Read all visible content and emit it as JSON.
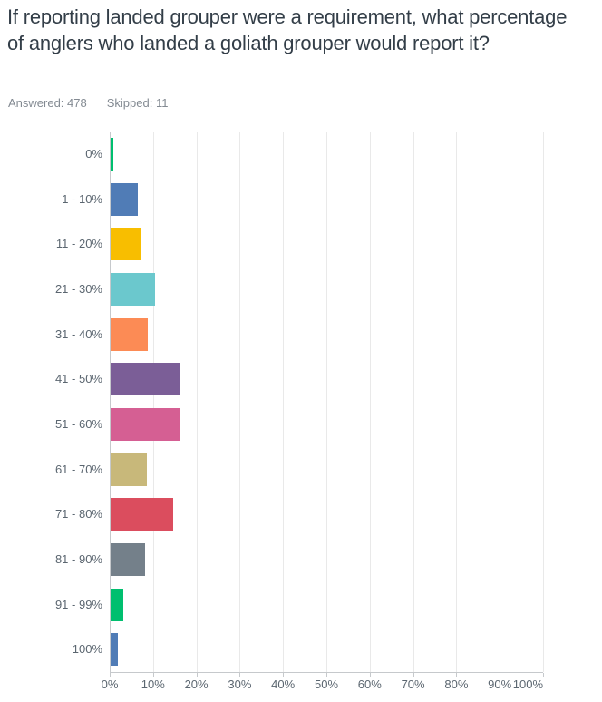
{
  "header": {
    "title": "If reporting landed grouper were a requirement, what percentage of anglers who landed a goliath grouper would report it?",
    "answered_label": "Answered:",
    "answered_value": "478",
    "skipped_label": "Skipped:",
    "skipped_value": "11"
  },
  "chart_data": {
    "type": "bar",
    "orientation": "horizontal",
    "title": "If reporting landed grouper were a requirement, what percentage of anglers who landed a goliath grouper would report it?",
    "categories": [
      "0%",
      "1 - 10%",
      "11 - 20%",
      "21 - 30%",
      "31 - 40%",
      "41 - 50%",
      "51 - 60%",
      "61 - 70%",
      "71 - 80%",
      "81 - 90%",
      "91 - 99%",
      "100%"
    ],
    "values": [
      0.63,
      6.28,
      6.9,
      10.25,
      8.58,
      16.11,
      15.9,
      8.37,
      14.44,
      7.95,
      2.93,
      1.67
    ],
    "unit": "%",
    "xlim": [
      0,
      100
    ],
    "x_tick_labels": [
      "0%",
      "10%",
      "20%",
      "30%",
      "40%",
      "50%",
      "60%",
      "70%",
      "80%",
      "90%",
      "100%"
    ],
    "grid": true,
    "legend": "none",
    "bar_colors": [
      "#00BF6F",
      "#507CB6",
      "#F8BE00",
      "#6BC8CD",
      "#FC8B55",
      "#7B5E97",
      "#D55F93",
      "#C8B87A",
      "#DB4D5E",
      "#74808A",
      "#00BF6F",
      "#507CB6"
    ]
  },
  "colors": {
    "title_text": "#333E48",
    "meta_text": "#838A92",
    "axis_label_text": "#5B6670",
    "axis_line": "#C6C9CC",
    "gridline": "#E9E9E9",
    "background": "#FFFFFF"
  }
}
